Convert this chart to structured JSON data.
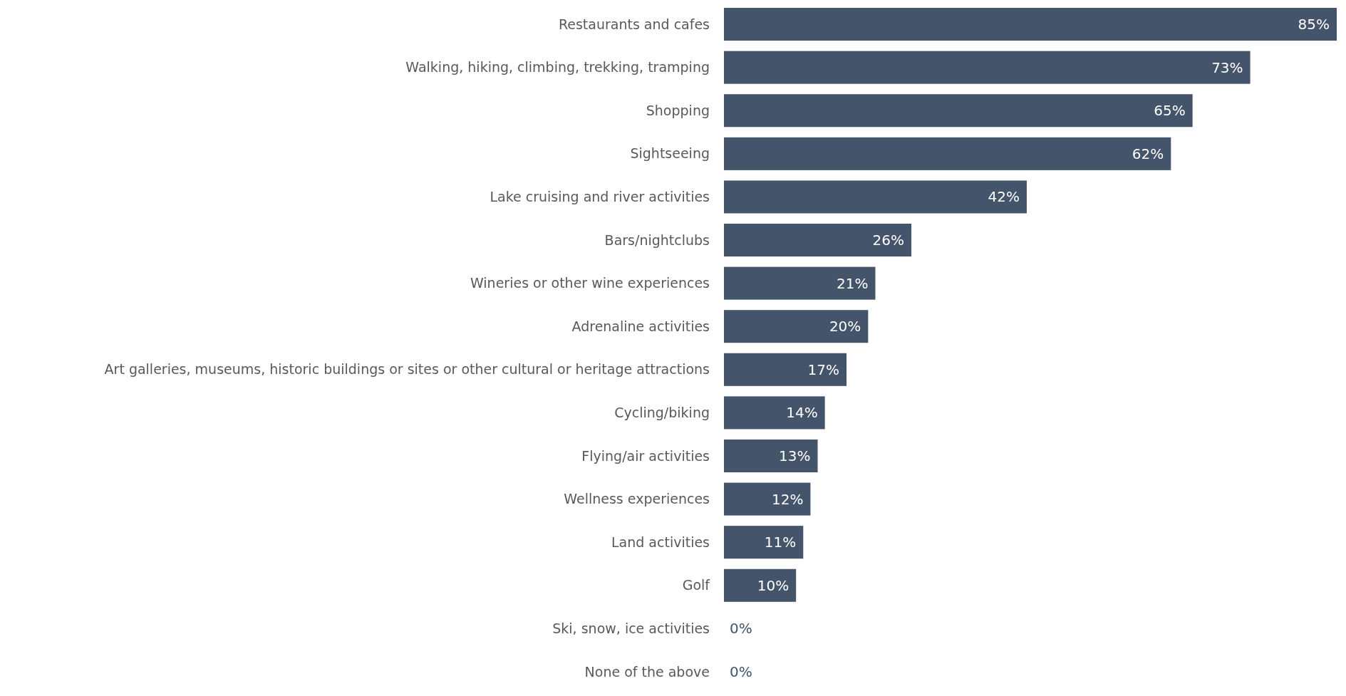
{
  "chart_data": {
    "type": "bar",
    "orientation": "horizontal",
    "categories": [
      "Restaurants and cafes",
      "Walking, hiking, climbing, trekking, tramping",
      "Shopping",
      "Sightseeing",
      "Lake cruising and river activities",
      "Bars/nightclubs",
      "Wineries or other wine experiences",
      "Adrenaline activities",
      "Art galleries, museums, historic buildings or sites or other cultural or heritage attractions",
      "Cycling/biking",
      "Flying/air activities",
      "Wellness experiences",
      "Land activities",
      "Golf",
      "Ski, snow, ice activities",
      "None of the above"
    ],
    "values": [
      85,
      73,
      65,
      62,
      42,
      26,
      21,
      20,
      17,
      14,
      13,
      12,
      11,
      10,
      0,
      0
    ],
    "value_labels": [
      "85%",
      "73%",
      "65%",
      "62%",
      "42%",
      "26%",
      "21%",
      "20%",
      "17%",
      "14%",
      "13%",
      "12%",
      "11%",
      "10%",
      "0%",
      "0%"
    ],
    "color": "#44546a"
  }
}
